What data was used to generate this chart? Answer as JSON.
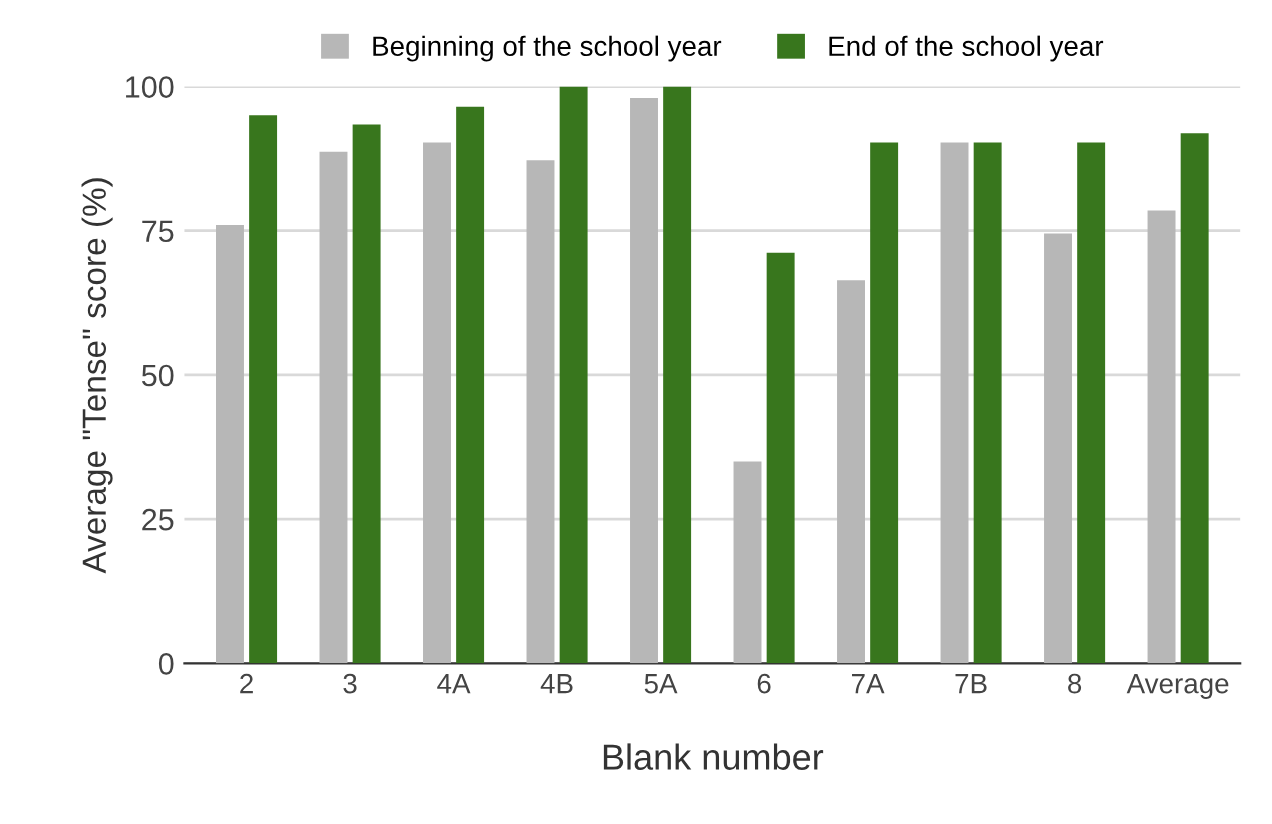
{
  "chart_data": {
    "type": "bar",
    "xlabel": "Blank number",
    "ylabel": "Average \"Tense\" score (%)",
    "categories": [
      "2",
      "3",
      "4A",
      "4B",
      "5A",
      "6",
      "7A",
      "7B",
      "8",
      "Average"
    ],
    "series": [
      {
        "name": "Beginning of the school year",
        "color": "#b7b7b7",
        "values": [
          76,
          88.7,
          90.3,
          87.2,
          98,
          35,
          66.4,
          90.3,
          74.5,
          78.5
        ]
      },
      {
        "name": "End of the school year",
        "color": "#38761d",
        "values": [
          95,
          93.4,
          96.5,
          100,
          100,
          71.2,
          90.3,
          90.3,
          90.3,
          91.9
        ]
      }
    ],
    "ylim": [
      0,
      100
    ],
    "yticks": [
      0,
      25,
      50,
      75,
      100
    ],
    "grid": "y",
    "legend": "top"
  }
}
